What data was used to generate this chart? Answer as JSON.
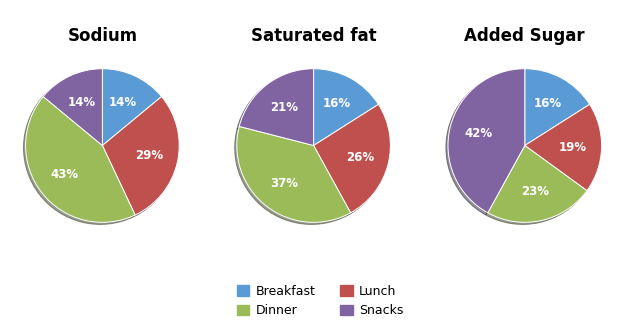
{
  "charts": [
    {
      "title": "Sodium",
      "values": [
        14,
        29,
        43,
        14
      ],
      "labels": [
        "14%",
        "29%",
        "43%",
        "14%"
      ],
      "start_angle": 90
    },
    {
      "title": "Saturated fat",
      "values": [
        16,
        26,
        37,
        21
      ],
      "labels": [
        "16%",
        "26%",
        "37%",
        "21%"
      ],
      "start_angle": 90
    },
    {
      "title": "Added Sugar",
      "values": [
        16,
        19,
        23,
        42
      ],
      "labels": [
        "16%",
        "19%",
        "23%",
        "42%"
      ],
      "start_angle": 90
    }
  ],
  "categories": [
    "Breakfast",
    "Lunch",
    "Dinner",
    "Snacks"
  ],
  "colors": [
    "#5B9BD5",
    "#C0504D",
    "#9BBB59",
    "#8064A2"
  ],
  "legend_items": [
    "Breakfast",
    "Lunch",
    "Dinner",
    "Snacks"
  ],
  "background_color": "#FFFFFF",
  "title_fontsize": 12,
  "label_fontsize": 8.5,
  "legend_fontsize": 9
}
